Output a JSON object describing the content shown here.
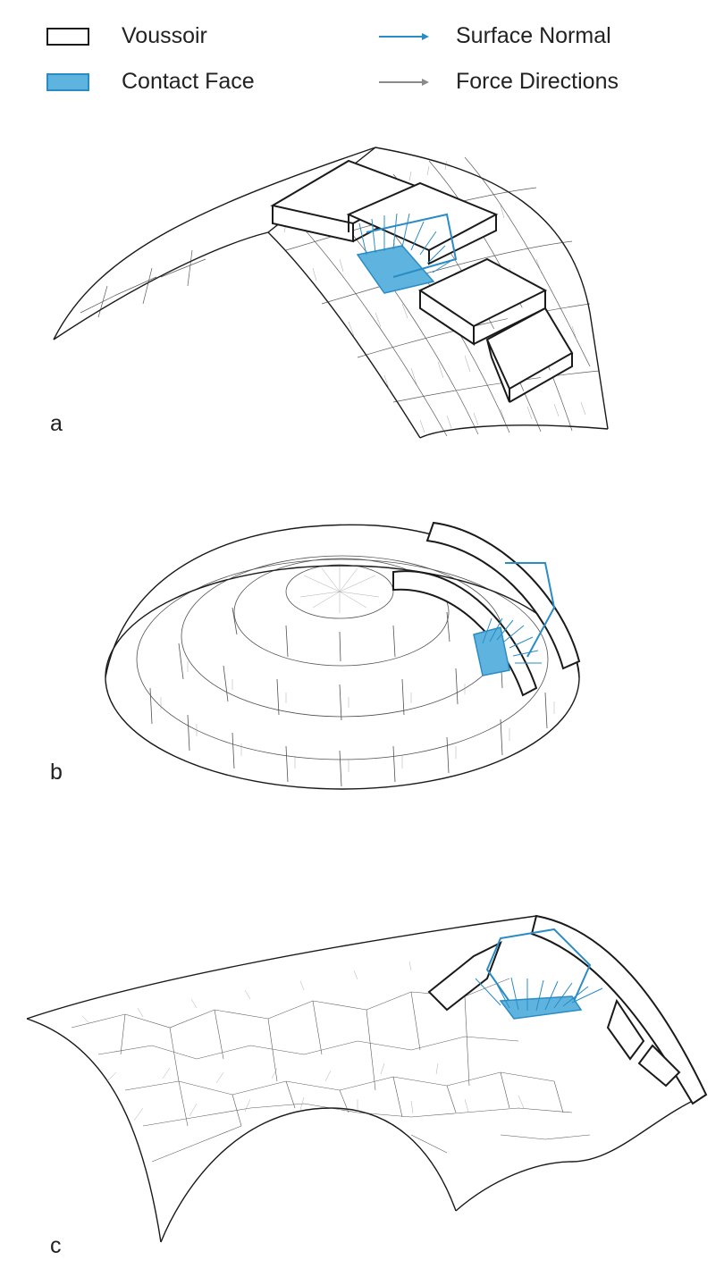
{
  "legend": {
    "voussoir": "Voussoir",
    "contact_face": "Contact Face",
    "surface_normal": "Surface  Normal",
    "force_directions": "Force Directions"
  },
  "panels": [
    {
      "label": "a"
    },
    {
      "label": "b"
    },
    {
      "label": "c"
    }
  ],
  "colors": {
    "outline": "#1a1a1a",
    "mesh": "#333333",
    "normal": "#2a8cc4",
    "contact_fill": "#5fb4df",
    "force": "#8a8a8a"
  }
}
